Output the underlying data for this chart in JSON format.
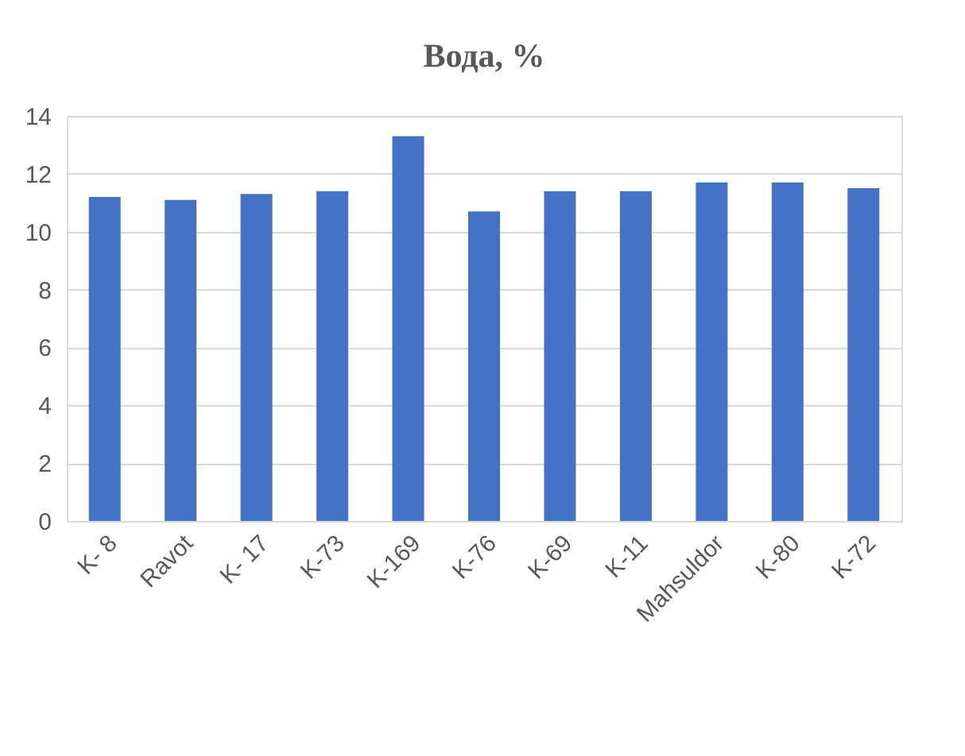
{
  "chart_data": {
    "type": "bar",
    "title": "Вода, %",
    "categories": [
      "K- 8",
      "Ravot",
      "K- 17",
      "K-73",
      "K-169",
      "K-76",
      "K-69",
      "K-11",
      "Mahsuldor",
      "K-80",
      "K-72"
    ],
    "values": [
      11.2,
      11.1,
      11.3,
      11.4,
      13.3,
      10.7,
      11.4,
      11.4,
      11.7,
      11.7,
      11.5
    ],
    "color": "#4472c4",
    "ylim": [
      0,
      14
    ],
    "yticks": [
      0,
      2,
      4,
      6,
      8,
      10,
      12,
      14
    ],
    "grid": "y"
  }
}
